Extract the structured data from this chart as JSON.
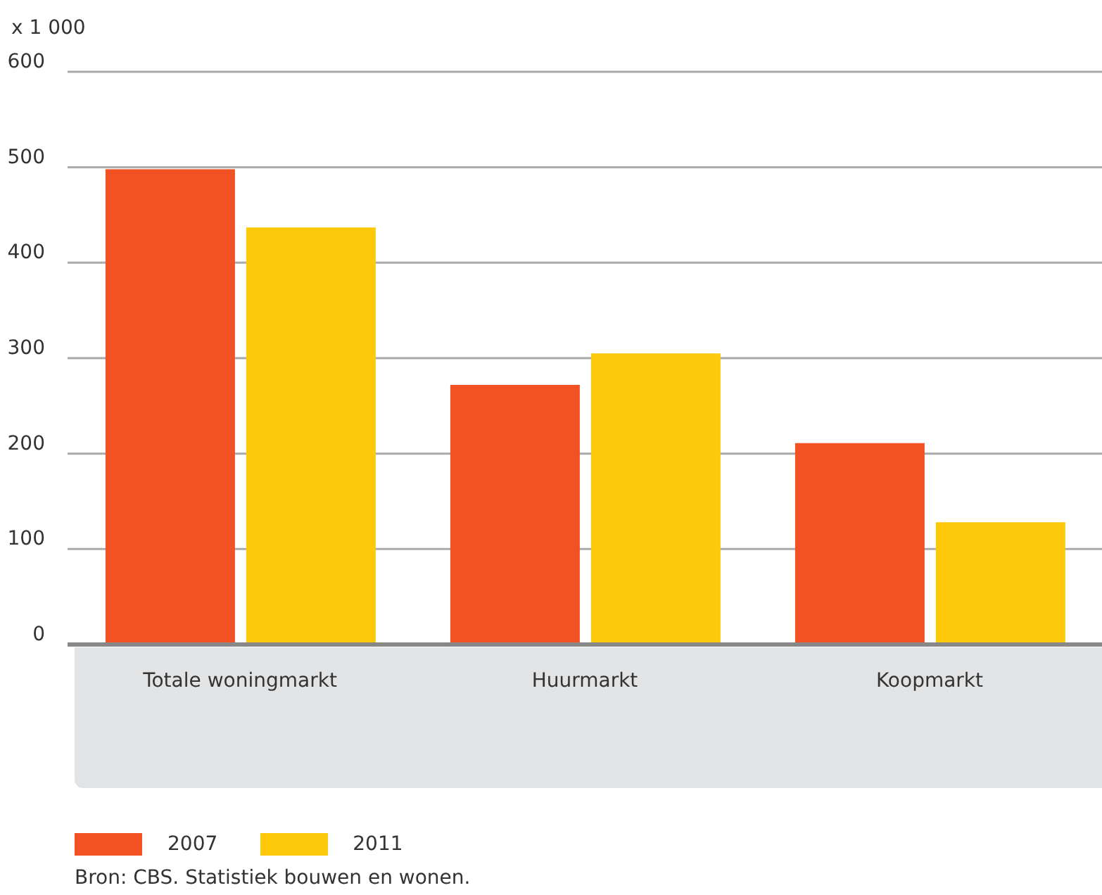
{
  "chart_data": {
    "type": "bar",
    "ylabel": "x 1 000",
    "categories": [
      "Totale woningmarkt",
      "Huurmarkt",
      "Koopmarkt"
    ],
    "series": [
      {
        "name": "2007",
        "color": "#f15123",
        "values": [
          498,
          272,
          211
        ]
      },
      {
        "name": "2011",
        "color": "#fec90b",
        "values": [
          437,
          305,
          128
        ]
      }
    ],
    "ylim": [
      0,
      600
    ],
    "yticks": [
      0,
      100,
      200,
      300,
      400,
      500,
      600
    ],
    "grid": "y",
    "legend": "bottom",
    "annotations": [
      "Bron: CBS. Statistiek bouwen en wonen."
    ]
  }
}
